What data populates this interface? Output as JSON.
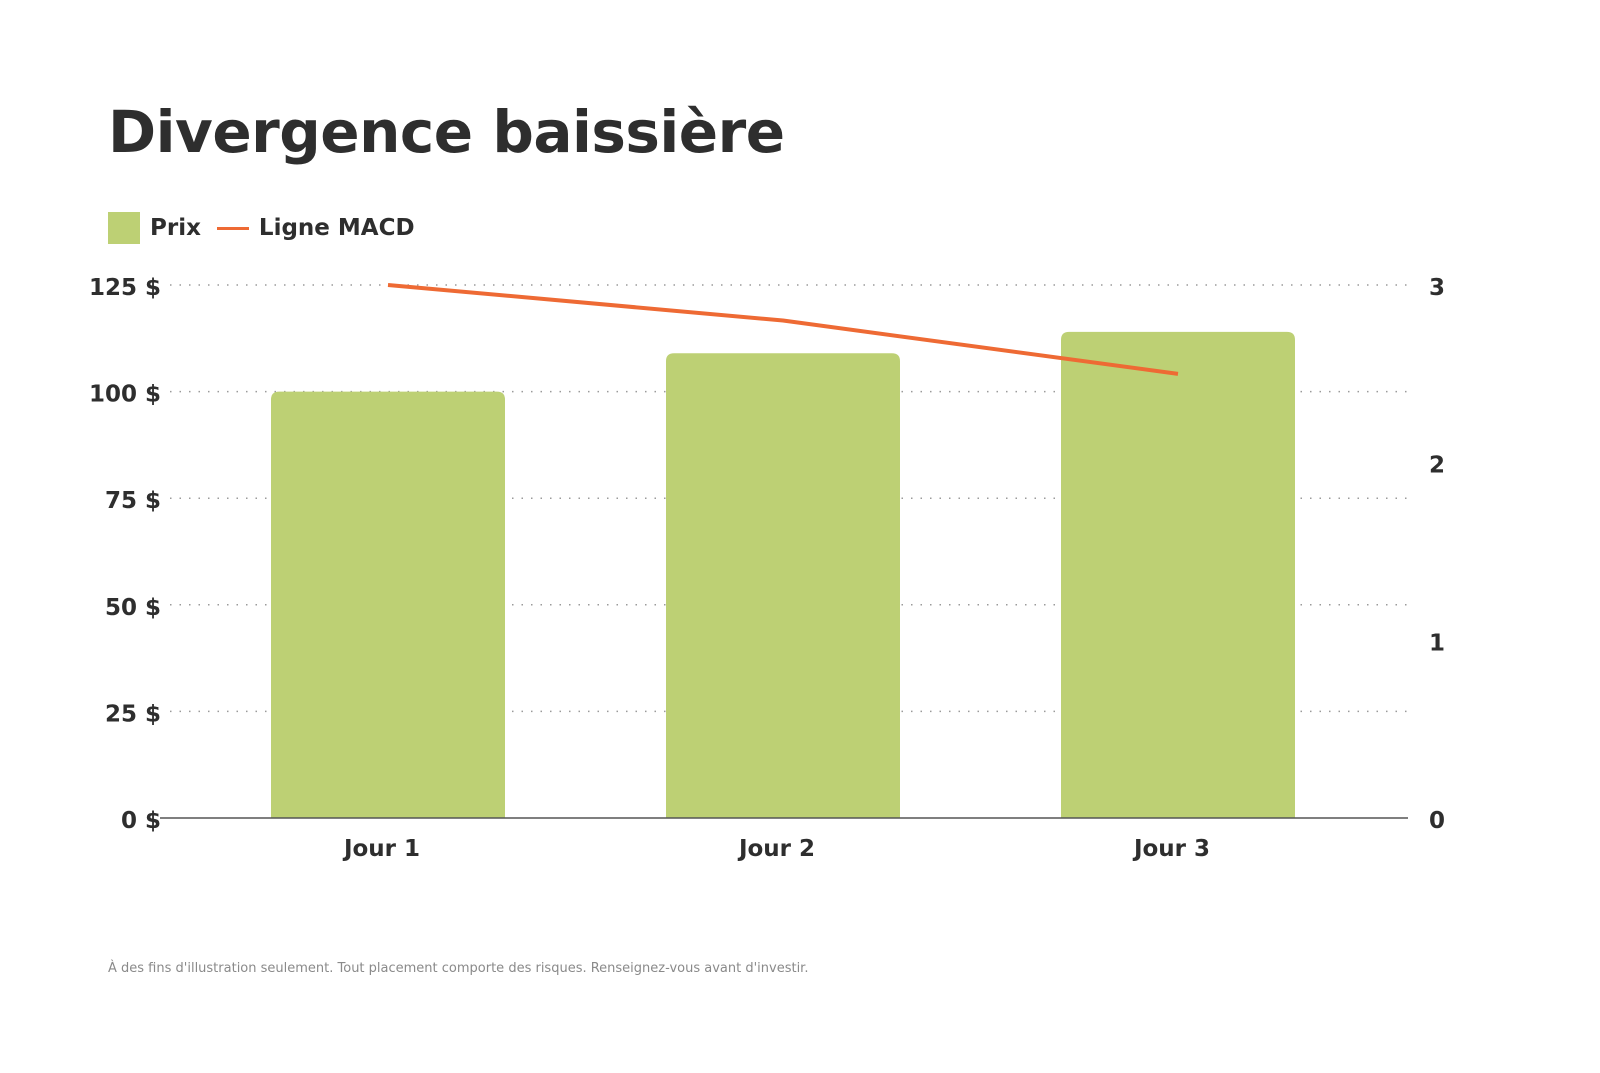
{
  "chart_data": {
    "type": "bar",
    "title": "Divergence baissière",
    "categories": [
      "Jour 1",
      "Jour 2",
      "Jour 3"
    ],
    "series": [
      {
        "name": "Prix",
        "type": "bar",
        "axis": "left",
        "values": [
          100,
          109,
          114
        ],
        "color": "#bdd074"
      },
      {
        "name": "Ligne MACD",
        "type": "line",
        "axis": "right",
        "values": [
          3.0,
          2.8,
          2.5
        ],
        "color": "#ee6a34"
      }
    ],
    "y_left": {
      "ylim": [
        0,
        125
      ],
      "ticks": [
        0,
        25,
        50,
        75,
        100,
        125
      ],
      "tick_labels": [
        "0 $",
        "25 $",
        "50 $",
        "75 $",
        "100 $",
        "125 $"
      ]
    },
    "y_right": {
      "ylim": [
        0,
        3
      ],
      "ticks": [
        0,
        1,
        2,
        3
      ],
      "tick_labels": [
        "0",
        "1",
        "2",
        "3"
      ]
    },
    "grid": true,
    "legend_position": "top-left"
  },
  "footnote": "À des fins d'illustration seulement. Tout placement comporte des risques. Renseignez-vous avant d'investir."
}
